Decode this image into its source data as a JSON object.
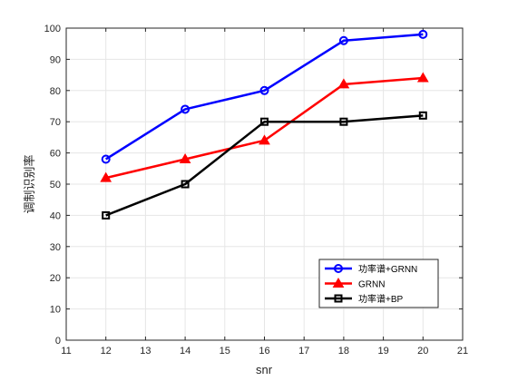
{
  "chart_data": {
    "type": "line",
    "title": "",
    "xlabel": "snr",
    "ylabel": "调制识别率",
    "xlim": [
      11,
      21
    ],
    "ylim": [
      0,
      100
    ],
    "xticks": [
      11,
      12,
      13,
      14,
      15,
      16,
      17,
      18,
      19,
      20,
      21
    ],
    "yticks": [
      0,
      10,
      20,
      30,
      40,
      50,
      60,
      70,
      80,
      90,
      100
    ],
    "grid": true,
    "legend_position": "bottom-right",
    "x": [
      12,
      14,
      16,
      18,
      20
    ],
    "series": [
      {
        "name": "功率谱+GRNN",
        "values": [
          58,
          74,
          80,
          96,
          98
        ],
        "color": "#0000ff",
        "marker": "circle"
      },
      {
        "name": "GRNN",
        "values": [
          52,
          58,
          64,
          82,
          84
        ],
        "color": "#ff0000",
        "marker": "triangle"
      },
      {
        "name": "功率谱+BP",
        "values": [
          40,
          50,
          70,
          70,
          72
        ],
        "color": "#000000",
        "marker": "square"
      }
    ]
  }
}
